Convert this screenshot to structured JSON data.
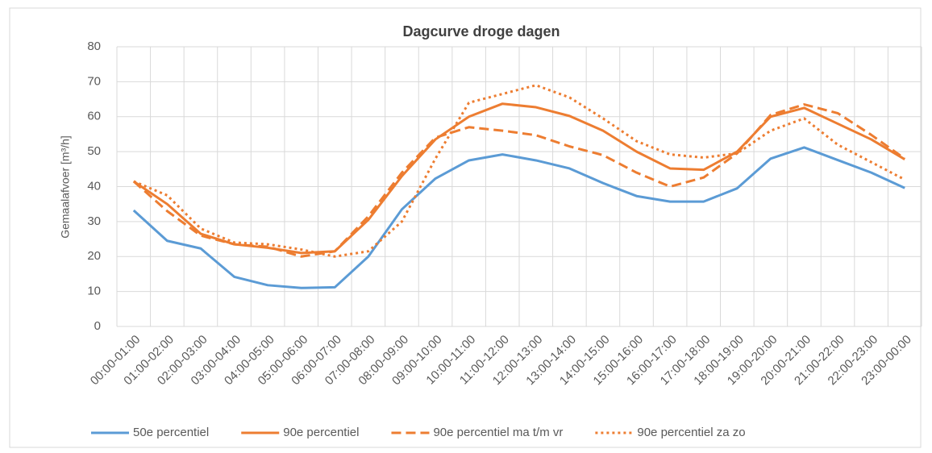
{
  "chart_data": {
    "type": "line",
    "title": "Dagcurve droge dagen",
    "y_label": "Gemaalafvoer [m³/h]",
    "categories": [
      "00:00-01:00",
      "01:00-02:00",
      "02:00-03:00",
      "03:00-04:00",
      "04:00-05:00",
      "05:00-06:00",
      "06:00-07:00",
      "07:00-08:00",
      "08:00-09:00",
      "09:00-10:00",
      "10:00-11:00",
      "11:00-12:00",
      "12:00-13:00",
      "13:00-14:00",
      "14:00-15:00",
      "15:00-16:00",
      "16:00-17:00",
      "17:00-18:00",
      "18:00-19:00",
      "19:00-20:00",
      "20:00-21:00",
      "21:00-22:00",
      "22:00-23:00",
      "23:00-00:00"
    ],
    "series": [
      {
        "name": "50e percentiel",
        "color": "#5b9bd5",
        "dash": "solid",
        "values": [
          33.2,
          24.5,
          22.3,
          14.2,
          11.8,
          11.0,
          11.2,
          20,
          33.5,
          42.3,
          47.5,
          49.2,
          47.5,
          45.2,
          41,
          37.3,
          35.7,
          35.7,
          39.5,
          48,
          51.2,
          47.6,
          44,
          39.6
        ]
      },
      {
        "name": "90e percentiel",
        "color": "#ed7d31",
        "dash": "solid",
        "values": [
          41.5,
          35,
          26.5,
          23.5,
          22.5,
          21,
          21.5,
          30.5,
          43,
          53.5,
          60,
          63.7,
          62.7,
          60.2,
          56,
          50,
          45.2,
          44.8,
          50,
          60,
          62.5,
          58,
          53.5,
          47.8
        ]
      },
      {
        "name": "90e percentiel ma t/m vr",
        "color": "#ed7d31",
        "dash": "dashed",
        "values": [
          41.5,
          33,
          26,
          23.5,
          22.8,
          20,
          21.5,
          31.5,
          44,
          54,
          57,
          56,
          54.7,
          51.5,
          49,
          44,
          40,
          42.6,
          49.5,
          60.5,
          63.5,
          61,
          54.8,
          48
        ]
      },
      {
        "name": "90e percentiel za zo",
        "color": "#ed7d31",
        "dash": "dotted",
        "values": [
          41.5,
          37.5,
          28,
          24,
          23.5,
          22,
          20,
          21.5,
          30,
          48,
          64,
          66.5,
          69,
          65.5,
          59.5,
          53,
          49.2,
          48.3,
          49.5,
          56,
          59.5,
          52,
          47,
          42
        ]
      }
    ],
    "ylim": [
      0,
      80
    ],
    "yticks": [
      0,
      10,
      20,
      30,
      40,
      50,
      60,
      70,
      80
    ],
    "grid": true,
    "legend": "bottom"
  }
}
